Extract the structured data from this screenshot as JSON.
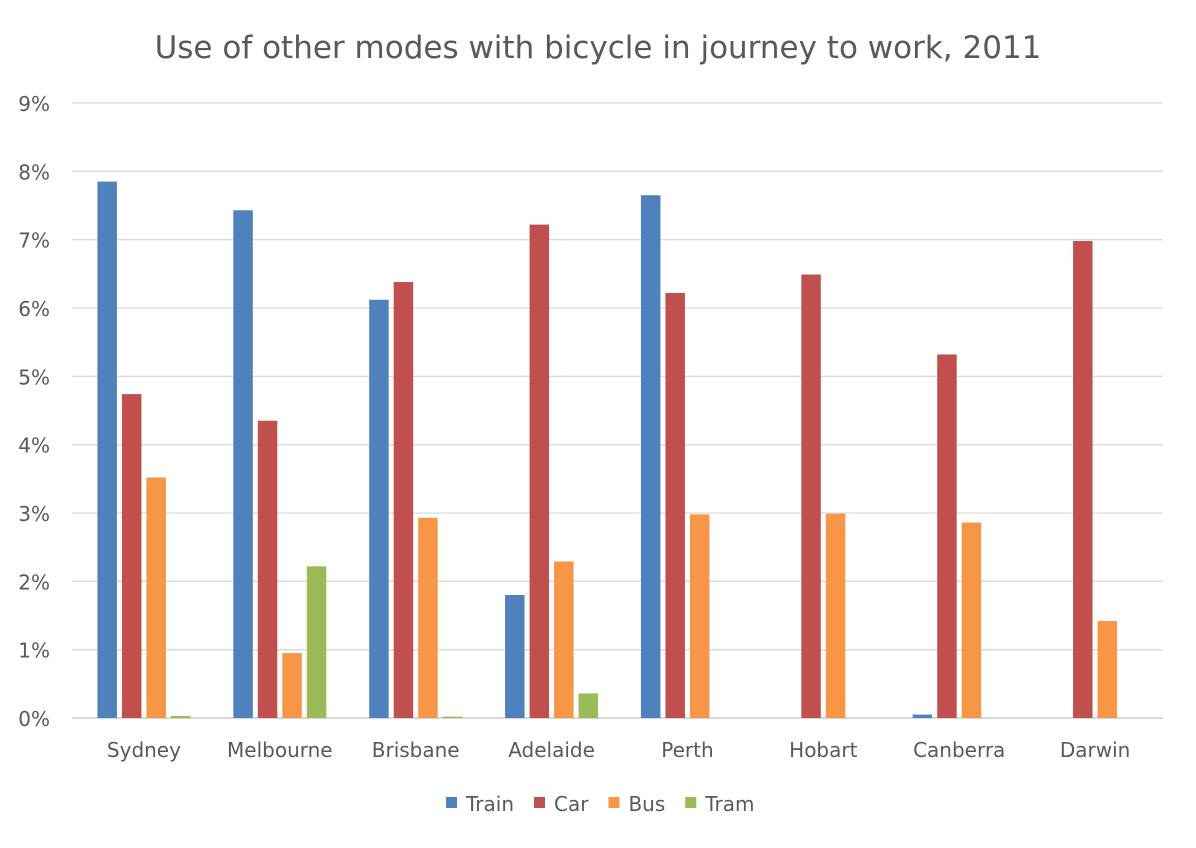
{
  "chart_data": {
    "type": "bar",
    "title": "Use of other modes with bicycle in journey to work, 2011",
    "xlabel": "",
    "ylabel": "",
    "ylim": [
      0,
      9
    ],
    "yticks": [
      "0%",
      "1%",
      "2%",
      "3%",
      "4%",
      "5%",
      "6%",
      "7%",
      "8%",
      "9%"
    ],
    "grid": true,
    "legend_position": "bottom",
    "categories": [
      "Sydney",
      "Melbourne",
      "Brisbane",
      "Adelaide",
      "Perth",
      "Hobart",
      "Canberra",
      "Darwin"
    ],
    "series": [
      {
        "name": "Train",
        "color": "#4F81BD",
        "values": [
          7.85,
          7.43,
          6.12,
          1.8,
          7.65,
          0,
          0.05,
          0
        ]
      },
      {
        "name": "Car",
        "color": "#C0504D",
        "values": [
          4.74,
          4.35,
          6.38,
          7.22,
          6.22,
          6.49,
          5.32,
          6.98
        ]
      },
      {
        "name": "Bus",
        "color": "#F79646",
        "values": [
          3.52,
          0.95,
          2.93,
          2.29,
          2.98,
          2.99,
          2.86,
          1.42
        ]
      },
      {
        "name": "Tram",
        "color": "#9BBB59",
        "values": [
          0.03,
          2.22,
          0.02,
          0.36,
          0,
          0,
          0,
          0
        ]
      }
    ]
  }
}
